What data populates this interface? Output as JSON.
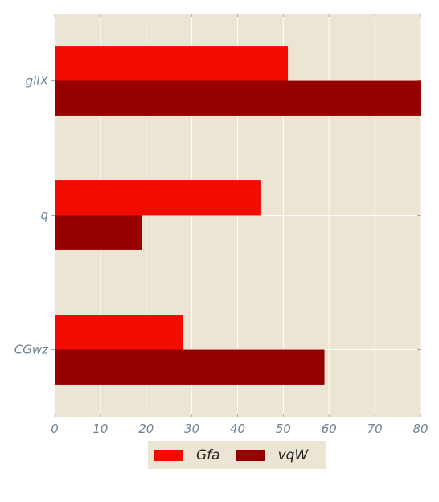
{
  "chart_data": {
    "type": "bar",
    "orientation": "horizontal",
    "categories": [
      "glIX",
      "q",
      "CGwz"
    ],
    "series": [
      {
        "name": "Gfa",
        "values": [
          51,
          45,
          28
        ],
        "color": "#f20b00"
      },
      {
        "name": "vqW",
        "values": [
          80,
          19,
          59
        ],
        "color": "#960000"
      }
    ],
    "xlim": [
      0,
      80
    ],
    "x_ticks": [
      0,
      10,
      20,
      30,
      40,
      50,
      60,
      70,
      80
    ],
    "grid": true,
    "legend_position": "bottom-center",
    "background_color": "#ece5d3",
    "title": "",
    "xlabel": "",
    "ylabel": ""
  }
}
